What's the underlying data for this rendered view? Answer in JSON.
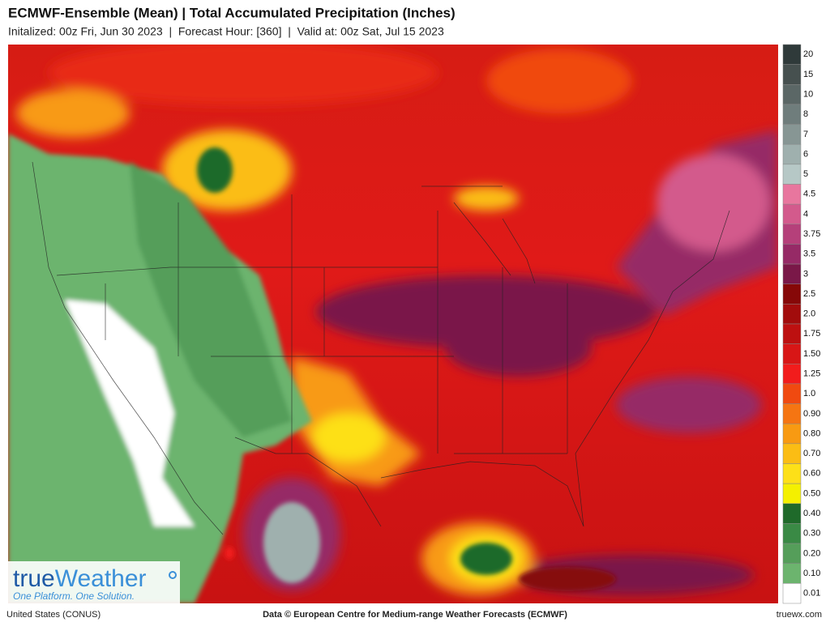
{
  "header": {
    "title": "ECMWF-Ensemble (Mean)  | Total Accumulated Precipitation (Inches)",
    "subtitle": "Initalized: 00z Fri, Jun 30 2023  |  Forecast Hour: [360]  |  Valid at: 00z Sat, Jul 15 2023"
  },
  "legend": [
    {
      "label": "20",
      "color": "#2f3a3a"
    },
    {
      "label": "15",
      "color": "#46504f"
    },
    {
      "label": "10",
      "color": "#5b6766"
    },
    {
      "label": "8",
      "color": "#6f7d7c"
    },
    {
      "label": "7",
      "color": "#879694"
    },
    {
      "label": "6",
      "color": "#9fb0ae"
    },
    {
      "label": "5",
      "color": "#b6c8c6"
    },
    {
      "label": "4.5",
      "color": "#e8769e"
    },
    {
      "label": "4",
      "color": "#d35a8c"
    },
    {
      "label": "3.75",
      "color": "#b5407a"
    },
    {
      "label": "3.5",
      "color": "#962a66"
    },
    {
      "label": "3",
      "color": "#7a1848"
    },
    {
      "label": "2.5",
      "color": "#860808"
    },
    {
      "label": "2.0",
      "color": "#a20c0c"
    },
    {
      "label": "1.75",
      "color": "#bd1010"
    },
    {
      "label": "1.50",
      "color": "#d81616"
    },
    {
      "label": "1.25",
      "color": "#f21c1c"
    },
    {
      "label": "1.0",
      "color": "#f04a10"
    },
    {
      "label": "0.90",
      "color": "#f57512"
    },
    {
      "label": "0.80",
      "color": "#f89a12"
    },
    {
      "label": "0.70",
      "color": "#fbbd14"
    },
    {
      "label": "0.60",
      "color": "#fde018"
    },
    {
      "label": "0.50",
      "color": "#f4f000"
    },
    {
      "label": "0.40",
      "color": "#1f6a2a"
    },
    {
      "label": "0.30",
      "color": "#3a8a45"
    },
    {
      "label": "0.20",
      "color": "#559e5a"
    },
    {
      "label": "0.10",
      "color": "#6cb46e"
    },
    {
      "label": "0.01",
      "color": "#ffffff"
    }
  ],
  "logo": {
    "parts": [
      "true",
      "Weather"
    ],
    "tagline": "One Platform. One Solution."
  },
  "footer": {
    "region": "United States (CONUS)",
    "credit": "Data © European Centre for Medium-range Weather Forecasts (ECMWF)",
    "site": "truewx.com"
  }
}
